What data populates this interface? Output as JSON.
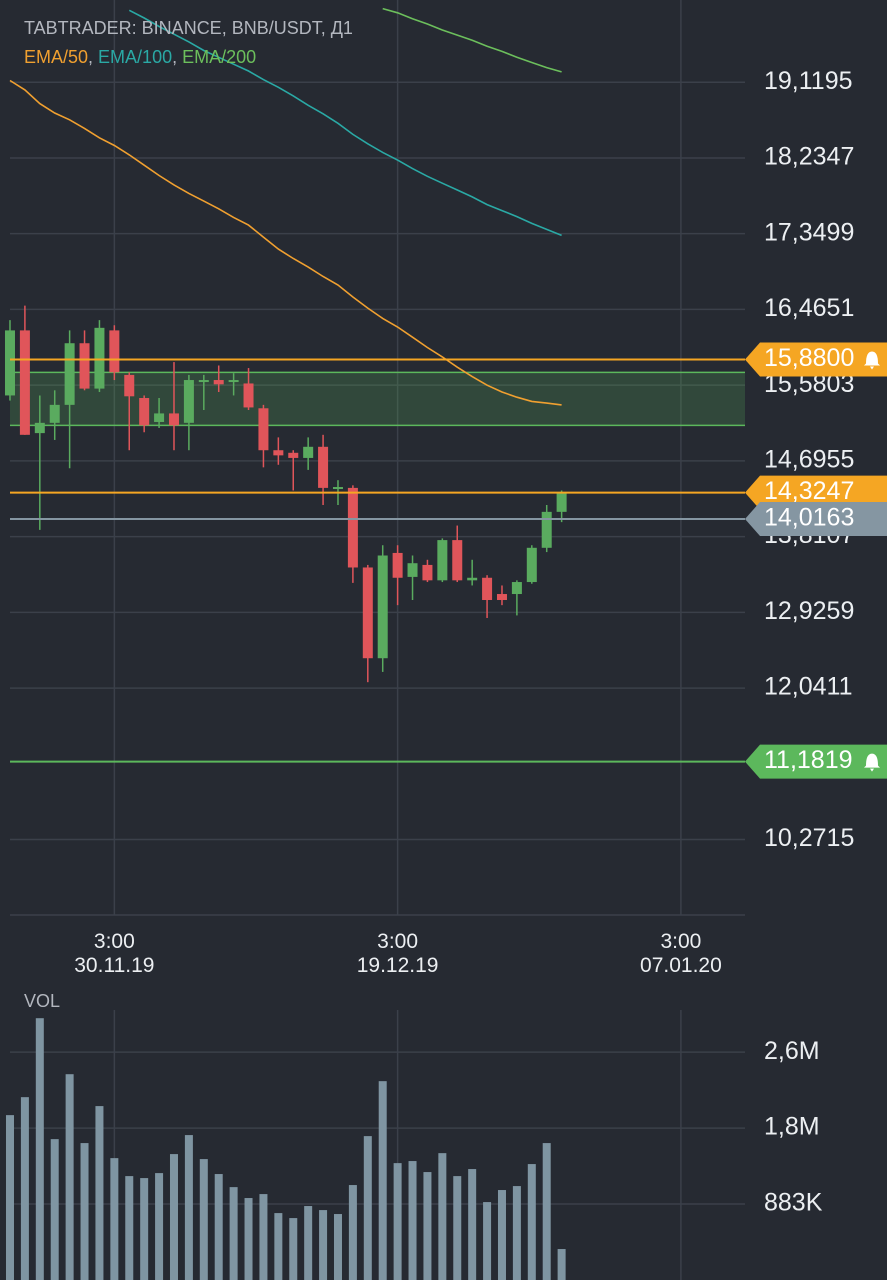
{
  "chart_data": [
    {
      "type": "candlestick",
      "title": "TABTRADER: BINANCE, BNB/USDT, Д1",
      "legend_separator": ", ",
      "up_color": "#5aab5f",
      "down_color": "#e0555a",
      "open": [
        15.46,
        16.22,
        15.02,
        15.14,
        15.35,
        16.07,
        15.54,
        16.22,
        15.7,
        15.43,
        15.15,
        15.25,
        15.14,
        15.64,
        15.64,
        15.64,
        15.6,
        15.31,
        14.82,
        14.79,
        14.73,
        14.86,
        14.38,
        14.38,
        13.45,
        12.39,
        13.62,
        13.34,
        13.48,
        13.3,
        13.77,
        13.3,
        13.33,
        13.14,
        13.14,
        13.28,
        13.68,
        14.1
      ],
      "high": [
        16.34,
        16.51,
        15.46,
        15.52,
        16.22,
        16.22,
        16.34,
        16.28,
        15.73,
        15.46,
        15.43,
        15.85,
        15.7,
        15.7,
        15.81,
        15.72,
        15.78,
        15.35,
        14.97,
        14.82,
        14.97,
        15.0,
        14.47,
        14.41,
        13.48,
        13.71,
        13.71,
        13.59,
        13.54,
        13.79,
        13.94,
        13.54,
        13.36,
        13.24,
        13.3,
        13.71,
        14.18,
        14.35
      ],
      "low": [
        15.4,
        15.0,
        13.89,
        14.94,
        14.61,
        15.52,
        15.5,
        15.64,
        14.82,
        15.03,
        15.08,
        14.82,
        14.82,
        15.29,
        15.5,
        15.46,
        15.29,
        14.62,
        14.65,
        14.35,
        14.59,
        14.18,
        14.18,
        13.27,
        12.11,
        12.23,
        13.01,
        13.07,
        13.28,
        13.28,
        13.28,
        13.24,
        12.86,
        13.01,
        12.89,
        13.26,
        13.63,
        13.98
      ],
      "close": [
        16.22,
        15.0,
        15.14,
        15.35,
        16.07,
        15.54,
        16.25,
        15.73,
        15.45,
        15.11,
        15.25,
        15.11,
        15.64,
        15.64,
        15.59,
        15.64,
        15.32,
        14.82,
        14.76,
        14.73,
        14.86,
        14.38,
        14.39,
        13.45,
        12.39,
        13.59,
        13.33,
        13.5,
        13.3,
        13.77,
        13.3,
        13.33,
        13.07,
        13.07,
        13.28,
        13.68,
        14.1,
        14.33
      ],
      "series": [
        {
          "name": "EMA/50",
          "color": "#f0a030",
          "values": [
            19.14,
            19.03,
            18.87,
            18.76,
            18.68,
            18.58,
            18.47,
            18.38,
            18.27,
            18.15,
            18.03,
            17.92,
            17.82,
            17.73,
            17.64,
            17.54,
            17.45,
            17.31,
            17.17,
            17.06,
            16.96,
            16.85,
            16.75,
            16.61,
            16.48,
            16.36,
            16.26,
            16.14,
            16.02,
            15.91,
            15.79,
            15.68,
            15.58,
            15.5,
            15.44,
            15.39,
            15.37,
            15.35
          ]
        },
        {
          "name": "EMA/100",
          "color": "#2aa9a5",
          "values": [
            null,
            null,
            null,
            null,
            null,
            null,
            null,
            null,
            19.96,
            19.87,
            19.77,
            19.68,
            19.59,
            19.49,
            19.41,
            19.33,
            19.25,
            19.15,
            19.06,
            18.96,
            18.85,
            18.75,
            18.64,
            18.51,
            18.4,
            18.3,
            18.21,
            18.11,
            18.02,
            17.94,
            17.86,
            17.78,
            17.69,
            17.62,
            17.55,
            17.47,
            17.4,
            17.33
          ]
        },
        {
          "name": "EMA/200",
          "color": "#6cbf5c",
          "values": [
            null,
            null,
            null,
            null,
            null,
            null,
            null,
            null,
            null,
            null,
            null,
            null,
            null,
            null,
            null,
            null,
            null,
            null,
            null,
            null,
            null,
            null,
            null,
            null,
            null,
            19.98,
            19.93,
            19.86,
            19.8,
            19.73,
            19.67,
            19.61,
            19.54,
            19.48,
            19.41,
            19.35,
            19.29,
            19.24
          ]
        }
      ],
      "zones": [
        {
          "from": 15.11,
          "to": 15.73,
          "color": "#5cb85c"
        }
      ],
      "price_lines": [
        {
          "value": 15.88,
          "label": "15,8800",
          "color": "#f5a623",
          "alert": true
        },
        {
          "value": 14.3247,
          "label": "14,3247",
          "color": "#f5a623",
          "alert": false
        },
        {
          "value": 14.0163,
          "label": "14,0163",
          "color": "#8596a2",
          "alert": false
        },
        {
          "value": 11.1819,
          "label": "11,1819",
          "color": "#5cb85c",
          "alert": true
        }
      ],
      "xlim": [
        -0.67,
        49.3
      ],
      "xticks": [
        {
          "value": 7,
          "label": [
            "3:00",
            "30.11.19"
          ]
        },
        {
          "value": 26,
          "label": [
            "3:00",
            "19.12.19"
          ]
        },
        {
          "value": 45,
          "label": [
            "3:00",
            "07.01.20"
          ]
        }
      ],
      "ylim": [
        9.39,
        20.08
      ],
      "yticks": [
        {
          "value": 19.1195,
          "label": "19,1195"
        },
        {
          "value": 18.2347,
          "label": "18,2347"
        },
        {
          "value": 17.3499,
          "label": "17,3499"
        },
        {
          "value": 16.4651,
          "label": "16,4651"
        },
        {
          "value": 15.5803,
          "label": "15,5803"
        },
        {
          "value": 14.6955,
          "label": "14,6955"
        },
        {
          "value": 13.8107,
          "label": "13,8107"
        },
        {
          "value": 12.9259,
          "label": "12,9259"
        },
        {
          "value": 12.0411,
          "label": "12,0411"
        },
        {
          "value": 10.2715,
          "label": "10,2715"
        }
      ],
      "grid": true
    },
    {
      "type": "bar",
      "title": "VOL",
      "color": "#7f95a2",
      "values": [
        1917000,
        2126000,
        3044000,
        1638000,
        2393000,
        1592000,
        2022000,
        1417000,
        1208000,
        1185000,
        1243000,
        1464000,
        1685000,
        1406000,
        1232000,
        1080000,
        953000,
        999000,
        778000,
        720000,
        860000,
        813000,
        767000,
        1104000,
        1673000,
        2312000,
        1359000,
        1383000,
        1255000,
        1475000,
        1208000,
        1290000,
        906000,
        1046000,
        1092000,
        1348000,
        1592000,
        360000
      ],
      "xlim": [
        -0.67,
        49.3
      ],
      "ylim": [
        0,
        3430000
      ],
      "yticks": [
        {
          "value": 2649000,
          "label": "2,6M"
        },
        {
          "value": 1766000,
          "label": "1,8M"
        },
        {
          "value": 883000,
          "label": "883K"
        }
      ],
      "grid": true
    }
  ]
}
